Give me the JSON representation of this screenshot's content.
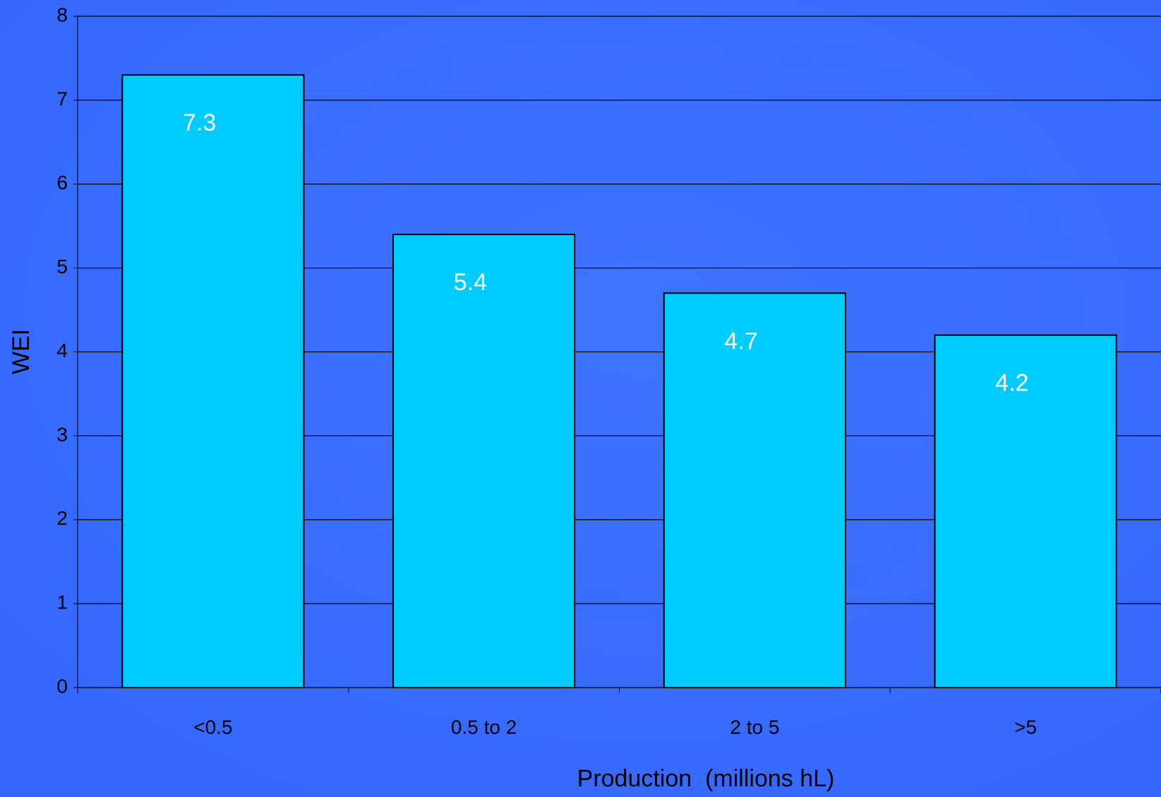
{
  "chart_data": {
    "type": "bar",
    "x_label": "Production  (millions hL)",
    "y_label": "WEI",
    "categories": [
      "<0.5",
      "0.5 to 2",
      "2 to 5",
      ">5"
    ],
    "values": [
      7.3,
      5.4,
      4.7,
      4.2
    ],
    "color": "#00ccff",
    "ylim": [
      0,
      8
    ],
    "yticks": [
      0,
      1,
      2,
      3,
      4,
      5,
      6,
      7,
      8
    ],
    "grid": true
  }
}
